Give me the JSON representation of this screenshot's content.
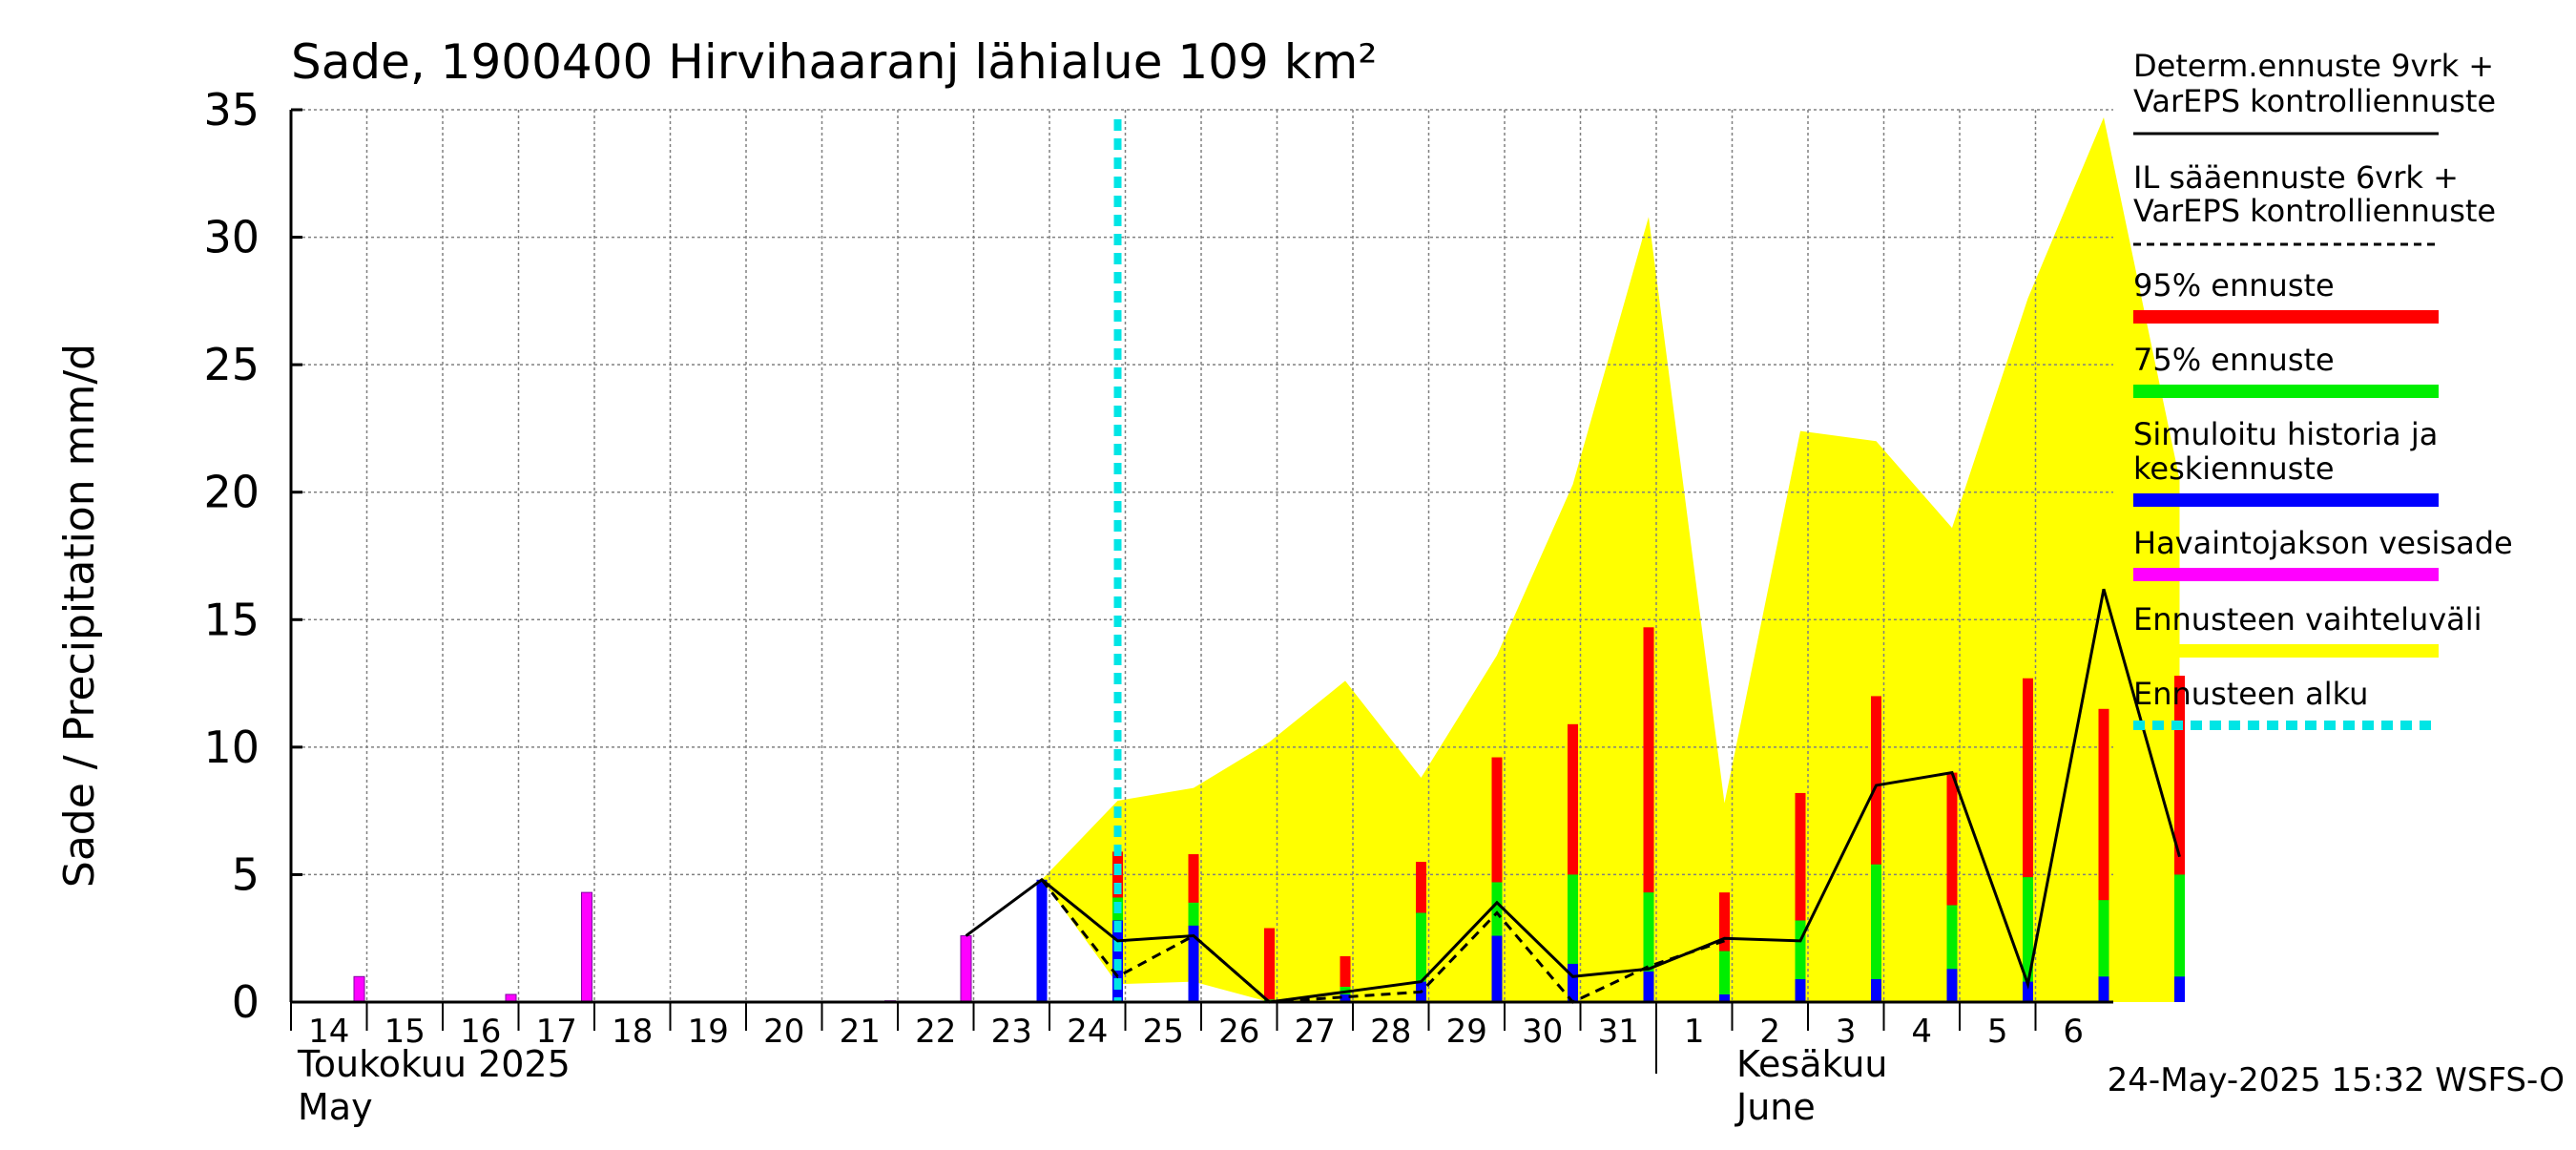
{
  "chart_data": {
    "type": "bar",
    "title": "Sade, 1900400 Hirvihaaranj lähialue 109 km²",
    "ylabel": "Sade / Precipitation   mm/d",
    "ylim": [
      0,
      35
    ],
    "yticks": [
      0,
      5,
      10,
      15,
      20,
      25,
      30,
      35
    ],
    "grid": true,
    "legend_position": "right",
    "xaxis": {
      "day_labels": [
        "14",
        "15",
        "16",
        "17",
        "18",
        "19",
        "20",
        "21",
        "22",
        "23",
        "24",
        "25",
        "26",
        "27",
        "28",
        "29",
        "30",
        "31",
        "1",
        "2",
        "3",
        "4",
        "5",
        "6"
      ],
      "month_labels": [
        {
          "name": "Toukokuu  2025",
          "name_en": "May"
        },
        {
          "name": "Kesäkuu",
          "name_en": "June"
        }
      ]
    },
    "forecast_start": "24",
    "observed_precip": [
      {
        "day": "14",
        "value": 1.0
      },
      {
        "day": "16",
        "value": 0.3
      },
      {
        "day": "17",
        "value": 4.3
      },
      {
        "day": "21",
        "value": 0.05
      },
      {
        "day": "22",
        "value": 2.6
      }
    ],
    "simulated_history": [
      {
        "day": "23",
        "value": 4.8
      }
    ],
    "forecast_bars": [
      {
        "day": "24",
        "p95": 5.9,
        "p75": 4.1,
        "mean": 3.2
      },
      {
        "day": "25",
        "p95": 5.8,
        "p75": 3.9,
        "mean": 3.0
      },
      {
        "day": "26",
        "p95": 2.9,
        "p75": 0.1,
        "mean": 0.0
      },
      {
        "day": "27",
        "p95": 1.8,
        "p75": 0.6,
        "mean": 0.3
      },
      {
        "day": "28",
        "p95": 5.5,
        "p75": 3.5,
        "mean": 0.8
      },
      {
        "day": "29",
        "p95": 9.6,
        "p75": 4.7,
        "mean": 2.6
      },
      {
        "day": "30",
        "p95": 10.9,
        "p75": 5.0,
        "mean": 1.5
      },
      {
        "day": "31",
        "p95": 14.7,
        "p75": 4.3,
        "mean": 1.2
      },
      {
        "day": "1",
        "p95": 4.3,
        "p75": 2.0,
        "mean": 0.3
      },
      {
        "day": "2",
        "p95": 8.2,
        "p75": 3.2,
        "mean": 0.9
      },
      {
        "day": "3",
        "p95": 12.0,
        "p75": 5.4,
        "mean": 0.9
      },
      {
        "day": "4",
        "p95": 9.0,
        "p75": 3.8,
        "mean": 1.3
      },
      {
        "day": "5",
        "p95": 12.7,
        "p75": 4.9,
        "mean": 0.8
      },
      {
        "day": "6",
        "p95": 11.5,
        "p75": 4.0,
        "mean": 1.0
      },
      {
        "day": "7",
        "p95": 12.8,
        "p75": 5.0,
        "mean": 1.0
      }
    ],
    "range_band": [
      {
        "day": "23",
        "low": 4.8,
        "high": 4.8
      },
      {
        "day": "24",
        "low": 0.7,
        "high": 7.9
      },
      {
        "day": "25",
        "low": 0.8,
        "high": 8.4
      },
      {
        "day": "26",
        "low": 0.0,
        "high": 10.2
      },
      {
        "day": "27",
        "low": 0.0,
        "high": 12.6
      },
      {
        "day": "28",
        "low": 0.0,
        "high": 8.8
      },
      {
        "day": "29",
        "low": 0.0,
        "high": 13.6
      },
      {
        "day": "30",
        "low": 0.0,
        "high": 20.3
      },
      {
        "day": "31",
        "low": 0.0,
        "high": 30.8
      },
      {
        "day": "1",
        "low": 0.0,
        "high": 7.8
      },
      {
        "day": "2",
        "low": 0.0,
        "high": 22.4
      },
      {
        "day": "3",
        "low": 0.0,
        "high": 22.0
      },
      {
        "day": "4",
        "low": 0.0,
        "high": 18.6
      },
      {
        "day": "5",
        "low": 0.0,
        "high": 27.6
      },
      {
        "day": "6",
        "low": 0.0,
        "high": 34.7
      },
      {
        "day": "7",
        "low": 0.0,
        "high": 20.5
      }
    ],
    "series": [
      {
        "name": "Determ.ennuste 9vrk + VarEPS kontrolliennuste",
        "style": "solid",
        "points": [
          {
            "day": "22",
            "value": 2.6
          },
          {
            "day": "23",
            "value": 4.8
          },
          {
            "day": "24",
            "value": 2.4
          },
          {
            "day": "25",
            "value": 2.6
          },
          {
            "day": "26",
            "value": 0.0
          },
          {
            "day": "27",
            "value": 0.4
          },
          {
            "day": "28",
            "value": 0.8
          },
          {
            "day": "29",
            "value": 3.9
          },
          {
            "day": "30",
            "value": 1.0
          },
          {
            "day": "31",
            "value": 1.3
          },
          {
            "day": "1",
            "value": 2.5
          },
          {
            "day": "2",
            "value": 2.4
          },
          {
            "day": "3",
            "value": 8.5
          },
          {
            "day": "4",
            "value": 9.0
          },
          {
            "day": "5",
            "value": 0.7
          },
          {
            "day": "6",
            "value": 16.2
          },
          {
            "day": "7",
            "value": 5.7
          }
        ]
      },
      {
        "name": "IL sääennuste 6vrk + VarEPS kontrolliennuste",
        "style": "dashed",
        "points": [
          {
            "day": "23",
            "value": 4.8
          },
          {
            "day": "24",
            "value": 1.0
          },
          {
            "day": "25",
            "value": 2.6
          },
          {
            "day": "26",
            "value": 0.0
          },
          {
            "day": "27",
            "value": 0.2
          },
          {
            "day": "28",
            "value": 0.4
          },
          {
            "day": "29",
            "value": 3.5
          },
          {
            "day": "30",
            "value": 0.0
          },
          {
            "day": "31",
            "value": 1.4
          },
          {
            "day": "1",
            "value": 2.4
          }
        ]
      }
    ],
    "legend": [
      {
        "label": "Determ.ennuste 9vrk +\nVarEPS kontrolliennuste",
        "color": "#000000",
        "style": "line"
      },
      {
        "label": "IL sääennuste 6vrk  +\n  VarEPS kontrolliennuste",
        "color": "#000000",
        "style": "dashed"
      },
      {
        "label": "95% ennuste",
        "color": "#ff0000",
        "style": "bar"
      },
      {
        "label": "75% ennuste",
        "color": "#00ee00",
        "style": "bar"
      },
      {
        "label": "Simuloitu historia ja\nkeskiennuste",
        "color": "#0000ff",
        "style": "bar"
      },
      {
        "label": "Havaintojakson vesisade",
        "color": "#ff00ff",
        "style": "bar"
      },
      {
        "label": "Ennusteen vaihteluväli",
        "color": "#ffff00",
        "style": "bar"
      },
      {
        "label": "Ennusteen alku",
        "color": "#00e5e5",
        "style": "dotted"
      }
    ],
    "colors": {
      "p95": "#ff0000",
      "p75": "#00ee00",
      "mean": "#0000ff",
      "observed": "#ff00ff",
      "range": "#ffff00",
      "forecast_start": "#00e5e5",
      "grid": "#808080"
    },
    "timestamp": "24-May-2025 15:32 WSFS-O"
  }
}
